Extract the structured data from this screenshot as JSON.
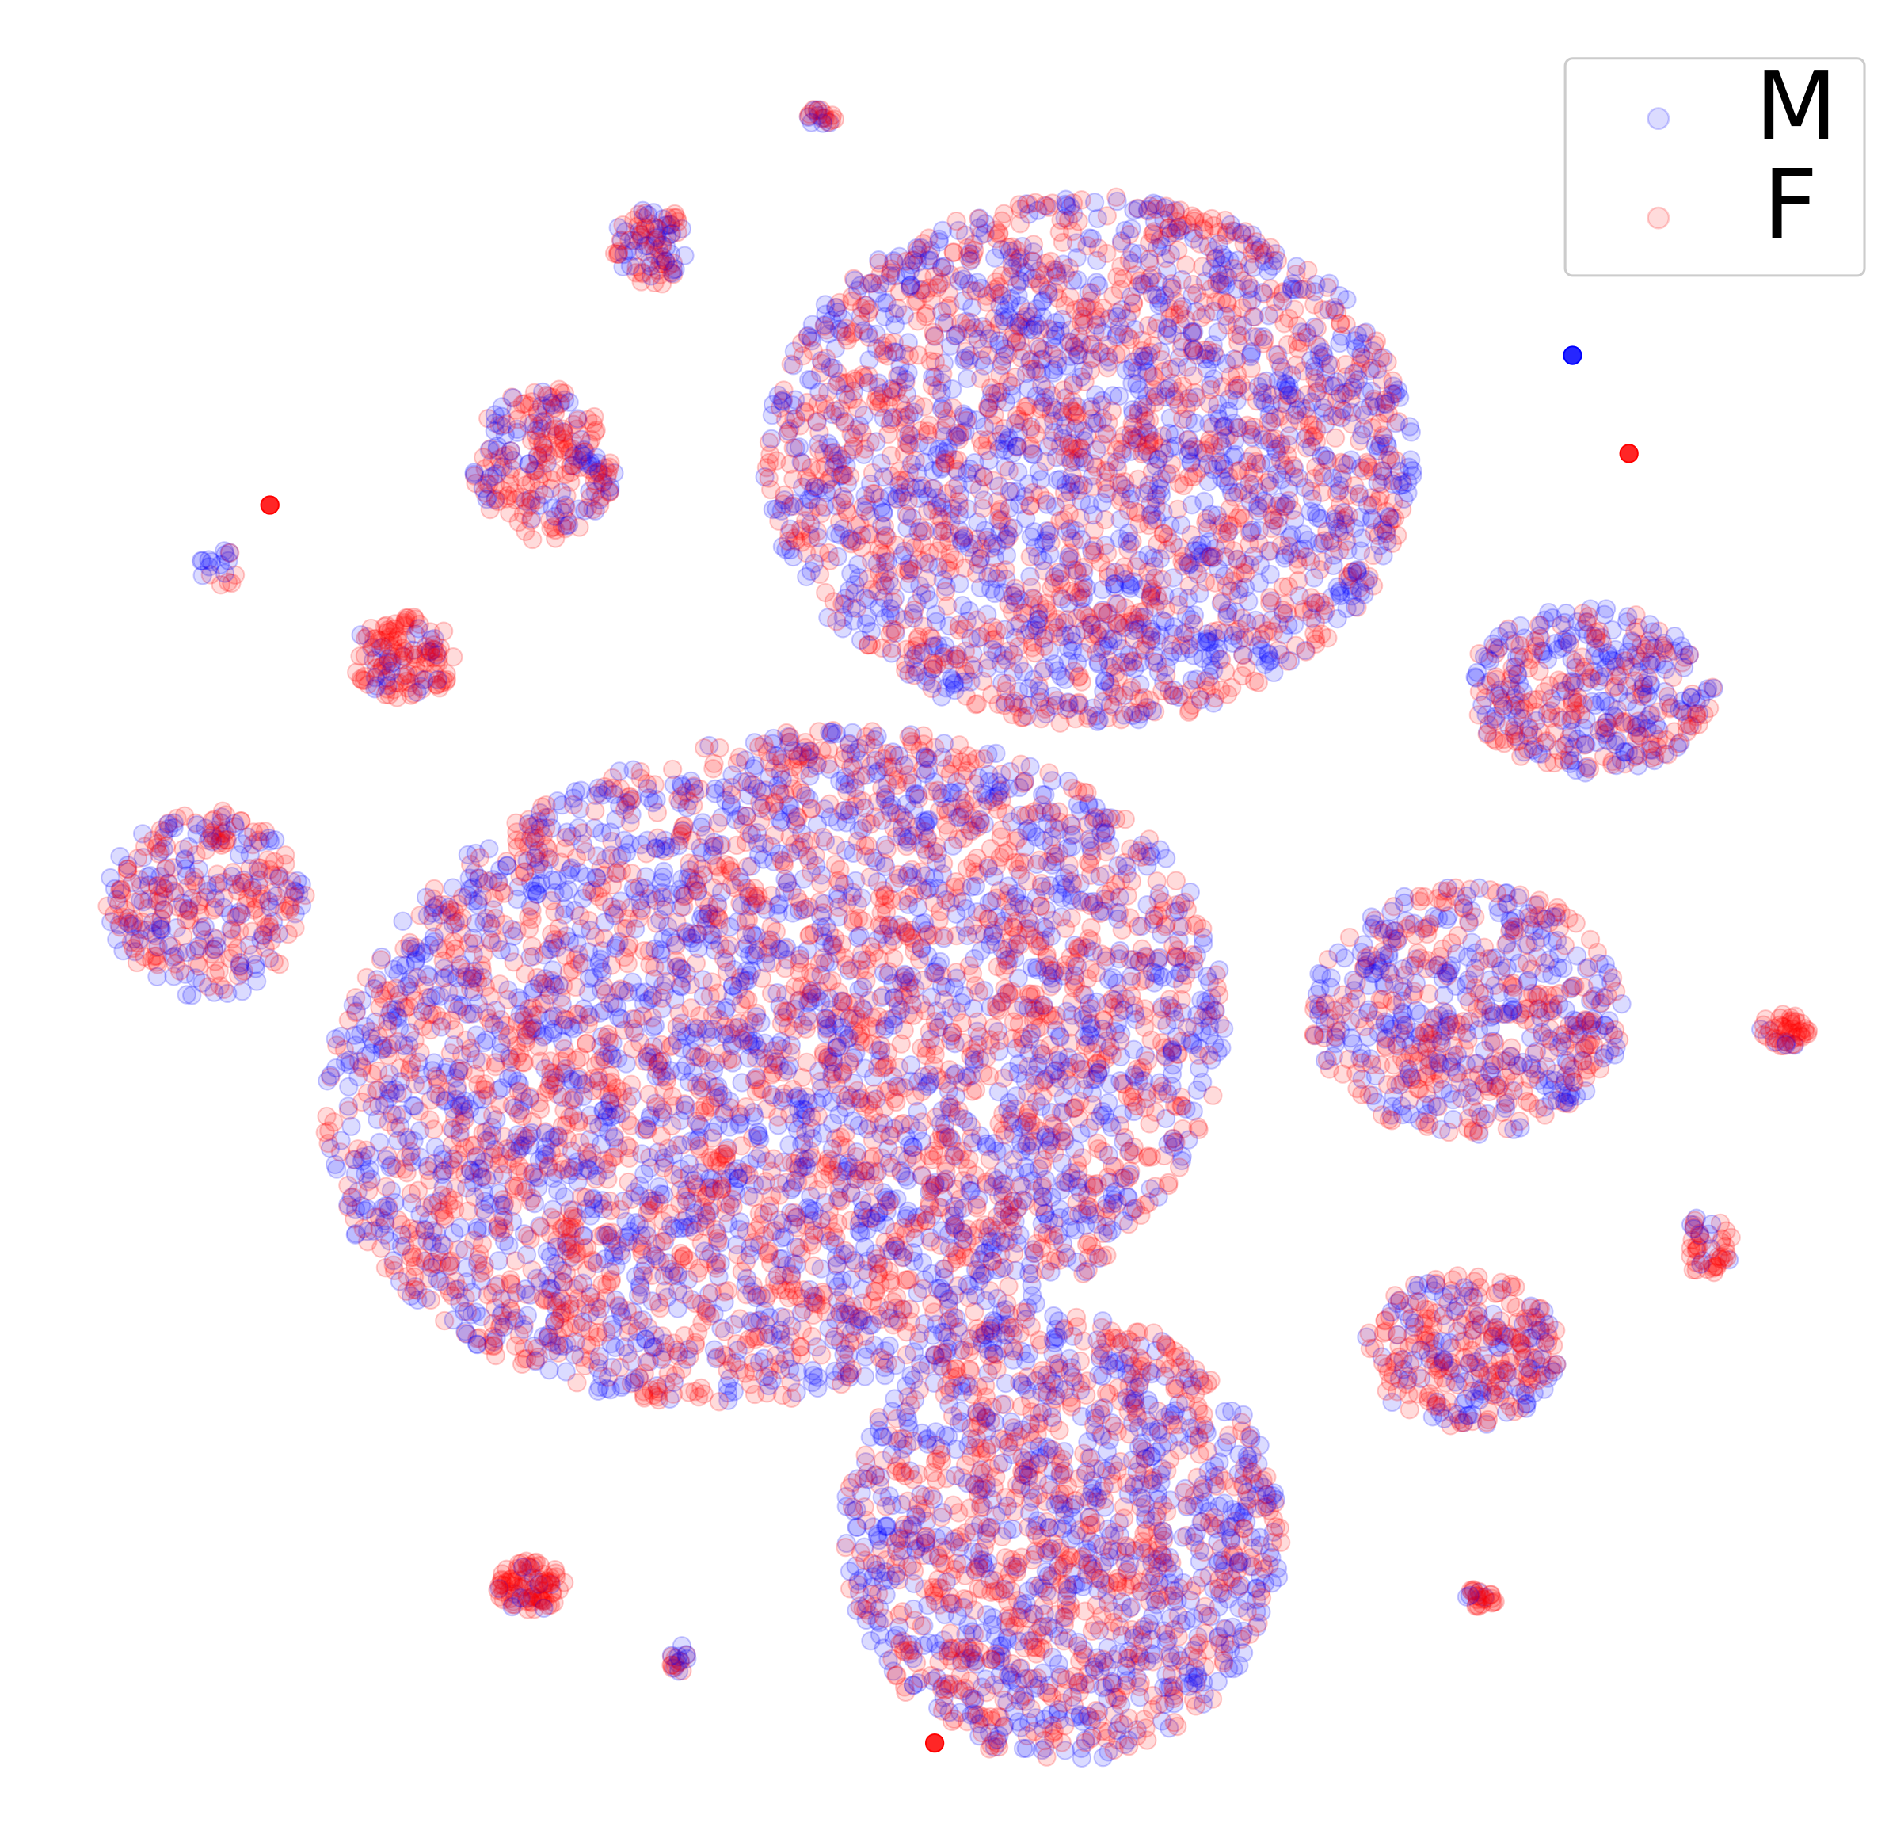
{
  "chart_data": {
    "type": "scatter",
    "title": "",
    "xlabel": "",
    "ylabel": "",
    "axes_visible": false,
    "grid": false,
    "legend": {
      "placement": "top-right",
      "entries": [
        "M",
        "F"
      ]
    },
    "xlim": [
      0,
      1540
    ],
    "ylim": [
      1500,
      0
    ],
    "series": [
      {
        "name": "M",
        "color": "#0000ff",
        "alpha": 0.14
      },
      {
        "name": "F",
        "color": "#ff0000",
        "alpha": 0.14
      }
    ],
    "clusters": [
      {
        "cx": 888,
        "cy": 375,
        "rx": 265,
        "ry": 215,
        "points": 2600,
        "f_share": 0.5
      },
      {
        "cx": 632,
        "cy": 868,
        "rx": 372,
        "ry": 268,
        "angle": -13,
        "points": 4300,
        "f_share": 0.5
      },
      {
        "cx": 866,
        "cy": 1252,
        "rx": 178,
        "ry": 182,
        "points": 1500,
        "f_share": 0.5
      },
      {
        "cx": 1196,
        "cy": 823,
        "rx": 128,
        "ry": 102,
        "points": 620,
        "f_share": 0.52
      },
      {
        "cx": 1297,
        "cy": 562,
        "rx": 100,
        "ry": 68,
        "points": 380,
        "f_share": 0.5
      },
      {
        "cx": 1193,
        "cy": 1100,
        "rx": 80,
        "ry": 62,
        "points": 300,
        "f_share": 0.62
      },
      {
        "cx": 168,
        "cy": 736,
        "rx": 80,
        "ry": 76,
        "points": 320,
        "f_share": 0.56
      },
      {
        "cx": 444,
        "cy": 378,
        "rx": 58,
        "ry": 62,
        "points": 230,
        "f_share": 0.62
      },
      {
        "cx": 530,
        "cy": 200,
        "rx": 31,
        "ry": 32,
        "points": 90,
        "f_share": 0.6
      },
      {
        "cx": 330,
        "cy": 534,
        "rx": 42,
        "ry": 34,
        "points": 130,
        "f_share": 0.72
      },
      {
        "cx": 432,
        "cy": 1292,
        "rx": 27,
        "ry": 21,
        "points": 90,
        "f_share": 0.85
      },
      {
        "cx": 553,
        "cy": 1352,
        "rx": 8,
        "ry": 12,
        "points": 18,
        "f_share": 0.7
      },
      {
        "cx": 1393,
        "cy": 1014,
        "rx": 21,
        "ry": 25,
        "points": 45,
        "f_share": 0.75
      },
      {
        "cx": 1456,
        "cy": 838,
        "rx": 20,
        "ry": 14,
        "points": 45,
        "f_share": 0.85
      },
      {
        "cx": 1207,
        "cy": 1303,
        "rx": 12,
        "ry": 9,
        "points": 25,
        "f_share": 0.7
      },
      {
        "cx": 670,
        "cy": 94,
        "rx": 12,
        "ry": 7,
        "points": 20,
        "f_share": 0.7
      },
      {
        "cx": 179,
        "cy": 462,
        "rx": 16,
        "ry": 18,
        "points": 18,
        "f_share": 0.45
      }
    ],
    "singletons": [
      {
        "x": 220,
        "y": 411,
        "series": "F"
      },
      {
        "x": 1282,
        "y": 289,
        "series": "M"
      },
      {
        "x": 1328,
        "y": 369,
        "series": "F"
      },
      {
        "x": 762,
        "y": 1420,
        "series": "F"
      }
    ]
  }
}
